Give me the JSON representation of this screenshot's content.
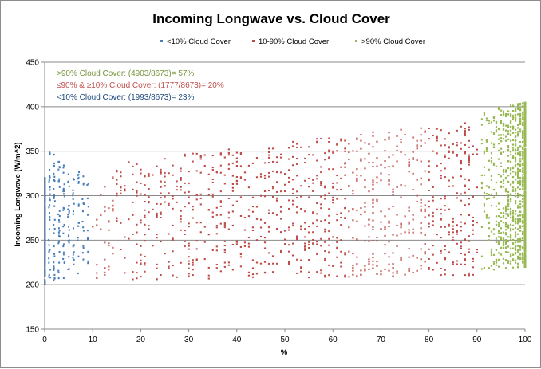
{
  "chart_data": {
    "type": "scatter",
    "title": "Incoming Longwave vs. Cloud Cover",
    "xlabel": "%",
    "ylabel": "Incoming Longwave (W/m^2)",
    "xlim": [
      0,
      100
    ],
    "ylim": [
      150,
      450
    ],
    "xticks": [
      "0",
      "10",
      "20",
      "30",
      "40",
      "50",
      "60",
      "70",
      "80",
      "90",
      "100"
    ],
    "yticks": [
      "150",
      "200",
      "250",
      "300",
      "350",
      "400",
      "450"
    ],
    "grid": "horizontal",
    "legend_position": "top",
    "series": [
      {
        "name": "<10% Cloud Cover",
        "color": "#4a7ebb",
        "x_range": [
          0,
          9.9
        ],
        "y_range_at_low_x": [
          200,
          355
        ],
        "y_range_at_high_x": [
          215,
          320
        ]
      },
      {
        "name": "10-90% Cloud Cover",
        "color": "#be4b48",
        "x_range": [
          10,
          90
        ],
        "y_range_at_low_x": [
          205,
          335
        ],
        "y_range_at_high_x": [
          210,
          385
        ]
      },
      {
        "name": ">90% Cloud Cover",
        "color": "#98b954",
        "x_range": [
          90.1,
          100
        ],
        "y_range_at_low_x": [
          215,
          395
        ],
        "y_range_at_high_x": [
          220,
          405
        ]
      }
    ],
    "annotations": [
      {
        "text": ">90% Cloud Cover: (4903/8673)= 57%",
        "color": "#77933c"
      },
      {
        "text": "≤90% & ≥10% Cloud Cover:  (1777/8673)= 20%",
        "color": "#c0504d"
      },
      {
        "text": "<10% Cloud Cover: (1993/8673)= 23%",
        "color": "#1f497d"
      }
    ]
  }
}
